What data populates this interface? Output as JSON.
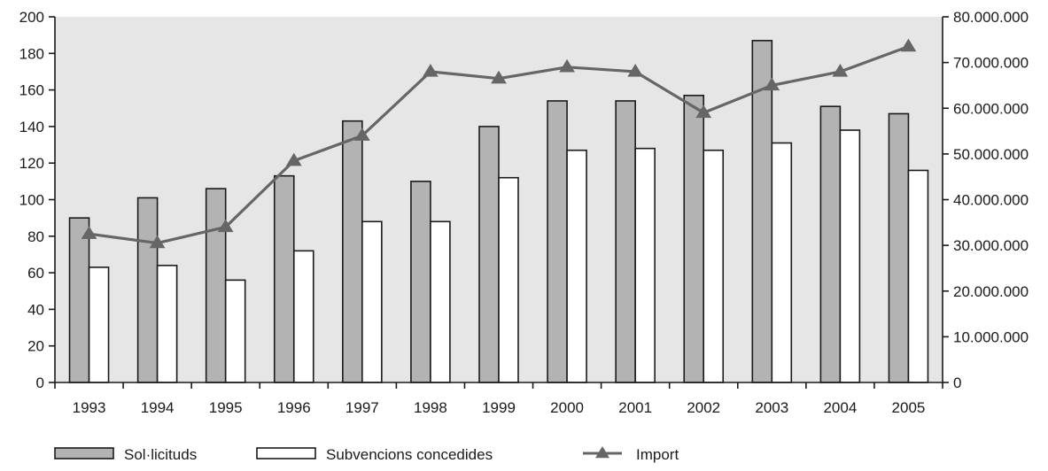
{
  "chart_data": {
    "type": "bar",
    "title": "",
    "xlabel": "",
    "ylabel": "",
    "y2label": "",
    "categories": [
      "1993",
      "1994",
      "1995",
      "1996",
      "1997",
      "1998",
      "1999",
      "2000",
      "2001",
      "2002",
      "2003",
      "2004",
      "2005"
    ],
    "ylim": [
      0,
      200
    ],
    "y_ticks": [
      0,
      20,
      40,
      60,
      80,
      100,
      120,
      140,
      160,
      180,
      200
    ],
    "y_tick_labels": [
      "0",
      "20",
      "40",
      "60",
      "80",
      "100",
      "120",
      "140",
      "160",
      "180",
      "200"
    ],
    "y2lim": [
      0,
      80000000
    ],
    "y2_ticks": [
      0,
      10000000,
      20000000,
      30000000,
      40000000,
      50000000,
      60000000,
      70000000,
      80000000
    ],
    "y2_tick_labels": [
      "0",
      "10.000.000",
      "20.000.000",
      "30.000.000",
      "40.000.000",
      "50.000.000",
      "60.000.000",
      "70.000.000",
      "80.000.000"
    ],
    "grid": false,
    "legend_position": "bottom",
    "series": [
      {
        "name": "Sol·licituds",
        "type": "bar",
        "axis": "left",
        "color": "#b3b3b3",
        "values": [
          90,
          101,
          106,
          113,
          143,
          110,
          140,
          154,
          154,
          157,
          187,
          151,
          147
        ]
      },
      {
        "name": "Subvencions concedides",
        "type": "bar",
        "axis": "left",
        "color": "#ffffff",
        "values": [
          63,
          64,
          56,
          72,
          88,
          88,
          112,
          127,
          128,
          127,
          131,
          138,
          116
        ]
      },
      {
        "name": "Import",
        "type": "line",
        "axis": "right",
        "color": "#666666",
        "marker": "triangle",
        "values": [
          32500000,
          30500000,
          34000000,
          48500000,
          54000000,
          68000000,
          66500000,
          69000000,
          68000000,
          59000000,
          65000000,
          68000000,
          73500000
        ]
      }
    ],
    "colors": {
      "plot_background": "#e6e6e6",
      "bar_outline": "#1a1a1a",
      "axis": "#1a1a1a"
    }
  }
}
